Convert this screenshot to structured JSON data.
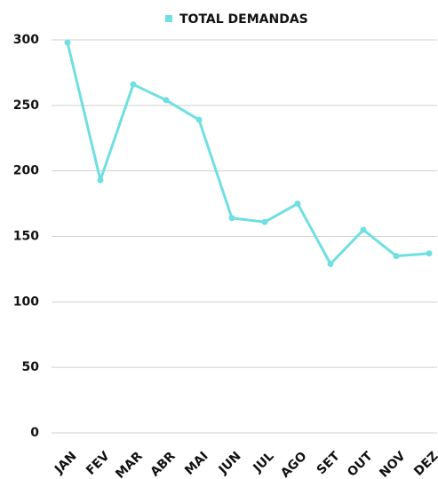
{
  "chart_data": {
    "type": "line",
    "categories": [
      "JAN",
      "FEV",
      "MAR",
      "ABR",
      "MAI",
      "JUN",
      "JUL",
      "AGO",
      "SET",
      "OUT",
      "NOV",
      "DEZ"
    ],
    "series": [
      {
        "name": "TOTAL DEMANDAS",
        "color": "#6fdfe2",
        "values": [
          298,
          193,
          266,
          254,
          239,
          164,
          161,
          175,
          129,
          155,
          135,
          137
        ]
      }
    ],
    "ylim": [
      0,
      300
    ],
    "yticks": [
      0,
      50,
      100,
      150,
      200,
      250,
      300
    ],
    "grid": true,
    "legend": "top"
  }
}
